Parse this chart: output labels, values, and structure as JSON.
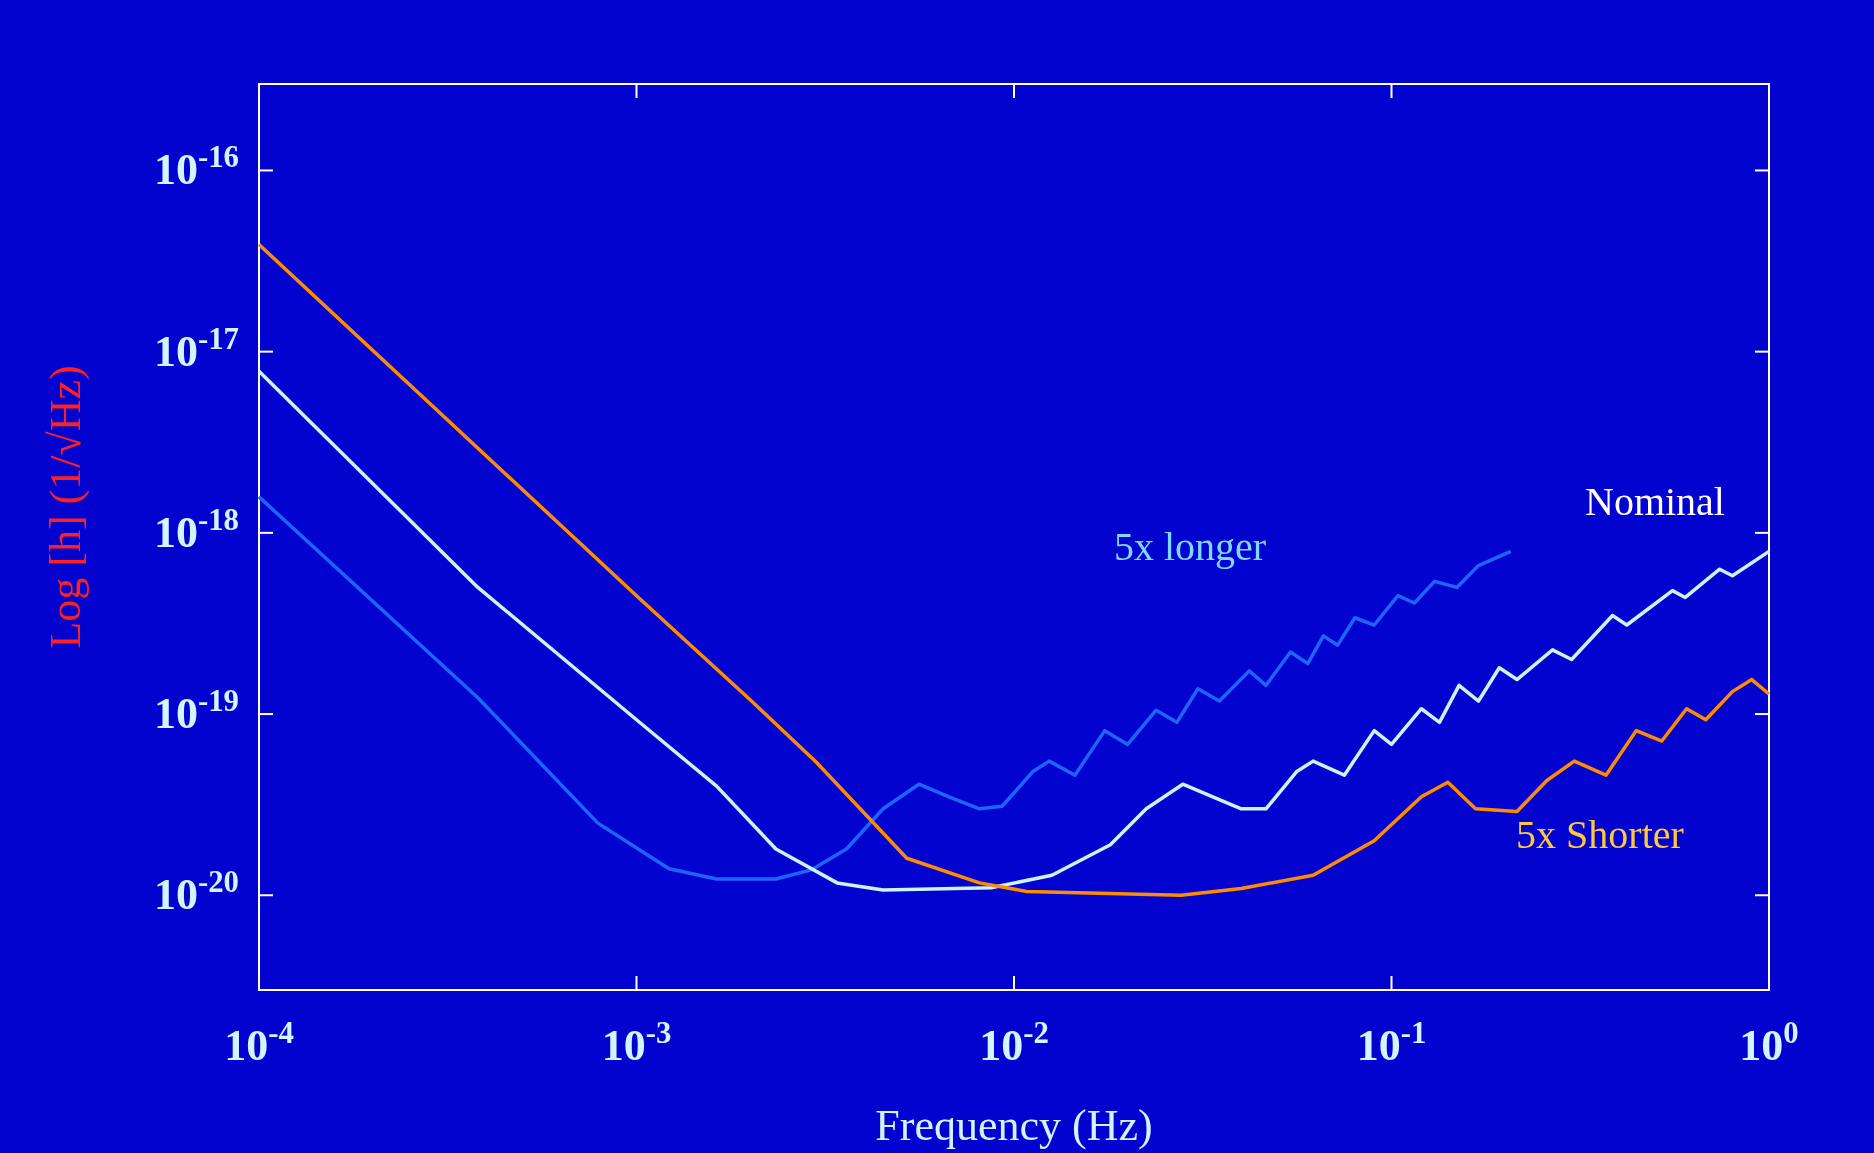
{
  "chart_data": {
    "type": "line",
    "xlabel": "Frequency (Hz)",
    "ylabel": "Log [h] (1/√Hz)",
    "log": "xy",
    "grid": false,
    "marker": "none",
    "line_style": "solid",
    "xlim": [
      0.0001,
      1
    ],
    "ylim": [
      3e-21,
      3e-16
    ],
    "xticks": [
      {
        "value": 0.0001,
        "label": "10$^{-4}$"
      },
      {
        "value": 0.001,
        "label": "10$^{-3}$"
      },
      {
        "value": 0.01,
        "label": "10$^{-2}$"
      },
      {
        "value": 0.1,
        "label": "10$^{-1}$"
      },
      {
        "value": 1,
        "label": "10$^{0}$"
      }
    ],
    "yticks": [
      {
        "value": 1e-20,
        "label": "10$^{-20}$"
      },
      {
        "value": 1e-19,
        "label": "10$^{-19}$"
      },
      {
        "value": 1e-18,
        "label": "10$^{-18}$"
      },
      {
        "value": 1e-17,
        "label": "10$^{-17}$"
      },
      {
        "value": 1e-16,
        "label": "10$^{-16}$"
      }
    ],
    "series": [
      {
        "name": "5x longer",
        "color": "#1e64ff",
        "x": [
          0.0001,
          0.00038,
          0.00079,
          0.00122,
          0.00163,
          0.00234,
          0.0029,
          0.0036,
          0.0045,
          0.0056,
          0.0067,
          0.0081,
          0.0093,
          0.0112,
          0.0124,
          0.0145,
          0.0174,
          0.02,
          0.0238,
          0.027,
          0.0307,
          0.035,
          0.042,
          0.0465,
          0.054,
          0.06,
          0.066,
          0.072,
          0.08,
          0.09,
          0.104,
          0.115,
          0.13,
          0.149,
          0.17,
          0.207
        ],
        "values": [
          1.58e-18,
          1.23e-19,
          2.5e-20,
          1.4e-20,
          1.23e-20,
          1.23e-20,
          1.38e-20,
          1.8e-20,
          3e-20,
          4.1e-20,
          3.5e-20,
          3e-20,
          3.1e-20,
          4.8e-20,
          5.5e-20,
          4.6e-20,
          8.1e-20,
          6.8e-20,
          1.05e-19,
          9e-20,
          1.38e-19,
          1.18e-19,
          1.73e-19,
          1.44e-19,
          2.2e-19,
          1.9e-19,
          2.7e-19,
          2.4e-19,
          3.4e-19,
          3.1e-19,
          4.5e-19,
          4.1e-19,
          5.4e-19,
          5e-19,
          6.6e-19,
          7.9e-19
        ]
      },
      {
        "name": "Nominal",
        "color": "#c8f5ff",
        "x": [
          0.0001,
          0.00038,
          0.001,
          0.00163,
          0.00234,
          0.0034,
          0.0045,
          0.0087,
          0.0126,
          0.018,
          0.0224,
          0.028,
          0.0335,
          0.04,
          0.0465,
          0.056,
          0.062,
          0.075,
          0.09,
          0.1,
          0.12,
          0.134,
          0.151,
          0.17,
          0.193,
          0.215,
          0.267,
          0.3,
          0.385,
          0.42,
          0.555,
          0.6,
          0.74,
          0.8,
          1
        ],
        "values": [
          7.8e-18,
          5e-19,
          9.3e-20,
          4e-20,
          1.8e-20,
          1.17e-20,
          1.07e-20,
          1.1e-20,
          1.29e-20,
          1.9e-20,
          3e-20,
          4.1e-20,
          3.5e-20,
          3e-20,
          3e-20,
          4.8e-20,
          5.5e-20,
          4.6e-20,
          8.1e-20,
          6.8e-20,
          1.07e-19,
          9e-20,
          1.44e-19,
          1.18e-19,
          1.8e-19,
          1.55e-19,
          2.26e-19,
          2e-19,
          3.5e-19,
          3.1e-19,
          4.8e-19,
          4.4e-19,
          6.3e-19,
          5.8e-19,
          7.9e-19
        ]
      },
      {
        "name": "5x Shorter",
        "color": "#ff8c00",
        "x": [
          0.0001,
          0.001,
          0.002,
          0.003,
          0.0052,
          0.0081,
          0.0108,
          0.0277,
          0.04,
          0.062,
          0.09,
          0.12,
          0.141,
          0.167,
          0.215,
          0.258,
          0.305,
          0.37,
          0.445,
          0.52,
          0.605,
          0.68,
          0.8,
          0.9,
          1
        ],
        "values": [
          3.9e-17,
          4.5e-19,
          1.2e-19,
          5.4e-20,
          1.6e-20,
          1.17e-20,
          1.05e-20,
          1e-20,
          1.09e-20,
          1.29e-20,
          2e-20,
          3.5e-20,
          4.2e-20,
          3e-20,
          2.9e-20,
          4.3e-20,
          5.5e-20,
          4.6e-20,
          8.1e-20,
          7.1e-20,
          1.07e-19,
          9.3e-20,
          1.33e-19,
          1.55e-19,
          1.29e-19
        ]
      }
    ]
  }
}
